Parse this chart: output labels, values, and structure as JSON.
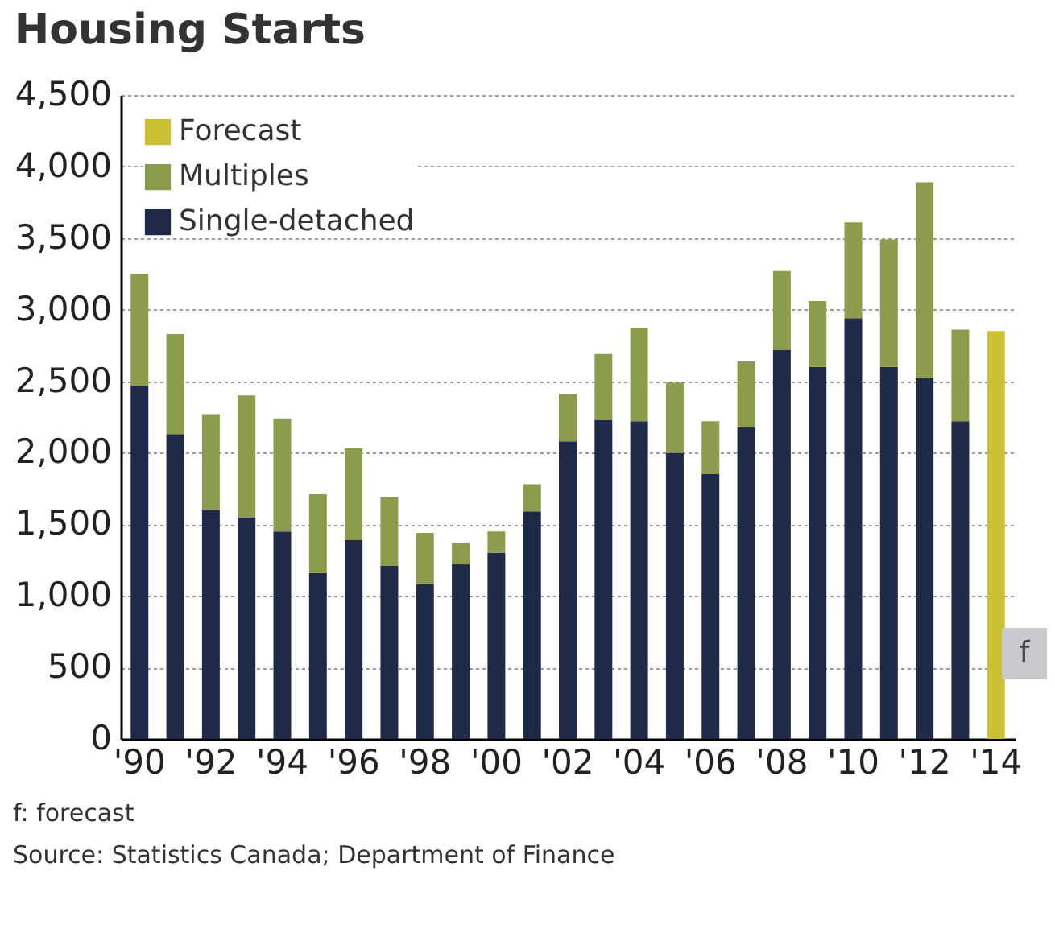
{
  "chart_data": {
    "type": "bar",
    "title": "Housing Starts",
    "stacked": true,
    "categories": [
      "'90",
      null,
      "'92",
      null,
      "'94",
      null,
      "'96",
      null,
      "'98",
      null,
      "'00",
      null,
      "'02",
      null,
      "'04",
      null,
      "'06",
      null,
      "'08",
      null,
      "'10",
      null,
      "'12",
      null,
      "'14"
    ],
    "series": [
      {
        "name": "Single-detached",
        "color": "#1f2a48",
        "values": [
          2470,
          2130,
          1600,
          1550,
          1450,
          1160,
          1390,
          1210,
          1080,
          1220,
          1300,
          1590,
          2080,
          2230,
          2220,
          2000,
          1850,
          2180,
          2720,
          2600,
          2940,
          2600,
          2520,
          2220,
          null
        ]
      },
      {
        "name": "Multiples",
        "color": "#8d9b4c",
        "values": [
          780,
          700,
          670,
          850,
          790,
          550,
          640,
          480,
          360,
          150,
          150,
          190,
          330,
          460,
          650,
          490,
          370,
          460,
          550,
          460,
          670,
          890,
          1370,
          640,
          null
        ]
      },
      {
        "name": "Forecast",
        "color": "#c9c133",
        "values": [
          null,
          null,
          null,
          null,
          null,
          null,
          null,
          null,
          null,
          null,
          null,
          null,
          null,
          null,
          null,
          null,
          null,
          null,
          null,
          null,
          null,
          null,
          null,
          null,
          2850
        ]
      }
    ],
    "ylim": [
      0,
      4500
    ],
    "yticks": [
      0,
      500,
      {
        "value": 1000,
        "label": "1,000"
      },
      {
        "value": 1500,
        "label": "1,500"
      },
      {
        "value": 2000,
        "label": "2,000"
      },
      {
        "value": 2500,
        "label": "2,500"
      },
      {
        "value": 3000,
        "label": "3,000"
      },
      {
        "value": 3500,
        "label": "3,500"
      },
      {
        "value": 4000,
        "label": "4,000"
      },
      {
        "value": 4500,
        "label": "4,500"
      }
    ],
    "grid": "y",
    "legend": "top left",
    "annotations": [
      "f",
      "f: forecast",
      "Source: Statistics Canada; Department of Finance"
    ]
  }
}
